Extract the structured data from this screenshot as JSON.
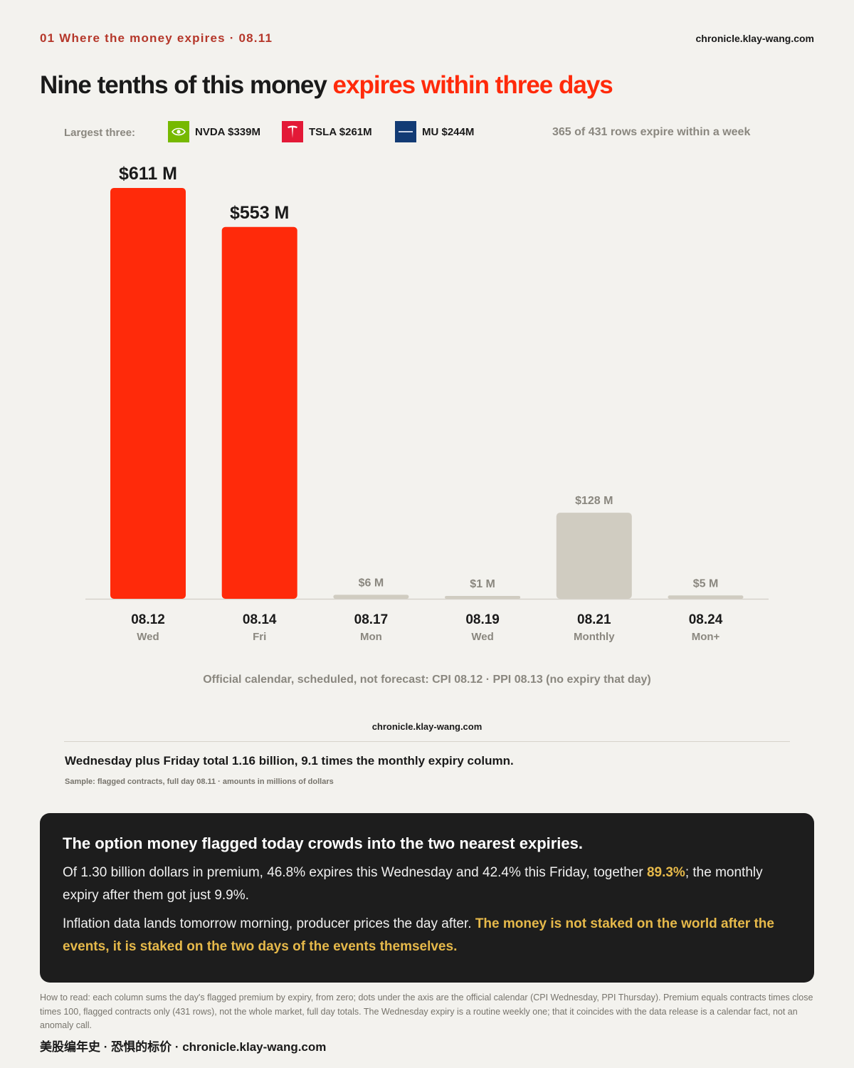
{
  "header": {
    "section": "01  Where the money expires · 08.11",
    "site": "chronicle.klay-wang.com"
  },
  "headline": {
    "main": "Nine tenths of this money ",
    "accent": "expires within three days"
  },
  "legend": {
    "label": "Largest three:",
    "items": [
      {
        "text": "NVDA $339M",
        "icon": "nvidia-logo-icon",
        "color": "#76b900"
      },
      {
        "text": "TSLA $261M",
        "icon": "tesla-logo-icon",
        "color": "#e31937"
      },
      {
        "text": "MU $244M",
        "icon": "micron-logo-icon",
        "color": "#123b74"
      }
    ],
    "note": "365 of 431 rows expire within a week"
  },
  "colors": {
    "accent": "#ff2a0a",
    "muted_bar": "#d0ccc1",
    "background": "#f3f2ee",
    "highlight": "#e6b94a"
  },
  "chart_data": {
    "type": "bar",
    "categories": [
      "08.12",
      "08.14",
      "08.17",
      "08.19",
      "08.21",
      "08.24"
    ],
    "sublabels": [
      "Wed",
      "Fri",
      "Mon",
      "Wed",
      "Monthly",
      "Mon+"
    ],
    "values": [
      611,
      553,
      6,
      1,
      128,
      5
    ],
    "data_labels": [
      "$611 M",
      "$553 M",
      "$6 M",
      "$1 M",
      "$128 M",
      "$5 M"
    ],
    "highlighted": [
      true,
      true,
      false,
      false,
      false,
      false
    ],
    "ylim": [
      0,
      611
    ],
    "grid": false,
    "unit": "millions of dollars"
  },
  "calendar_note": "Official calendar, scheduled, not forecast: CPI 08.12 · PPI 08.13 (no expiry that day)",
  "mid_site": "chronicle.klay-wang.com",
  "summary": "Wednesday plus Friday total 1.16 billion, 9.1 times the monthly expiry column.",
  "sample": "Sample: flagged contracts, full day 08.11 · amounts in millions of dollars",
  "box": {
    "title": "The option money flagged today crowds into the two nearest expiries.",
    "p1_a": "Of 1.30 billion dollars in premium, 46.8% expires this Wednesday and 42.4% this Friday, together ",
    "p1_hl": "89.3%",
    "p1_b": "; the monthly expiry after them got just 9.9%.",
    "p2_a": "Inflation data lands tomorrow morning, producer prices the day after. ",
    "p2_hl": "The money is not staked on the world after the events, it is staked on the two days of the events themselves."
  },
  "how_to": "How to read: each column sums the day's flagged premium by expiry, from zero; dots under the axis are the official calendar (CPI Wednesday, PPI Thursday). Premium equals contracts times close times 100, flagged contracts only (431 rows), not the whole market, full day totals. The Wednesday expiry is a routine weekly one; that it coincides with the data release is a calendar fact, not an anomaly call.",
  "footer": "美股编年史 · 恐惧的标价 · chronicle.klay-wang.com"
}
